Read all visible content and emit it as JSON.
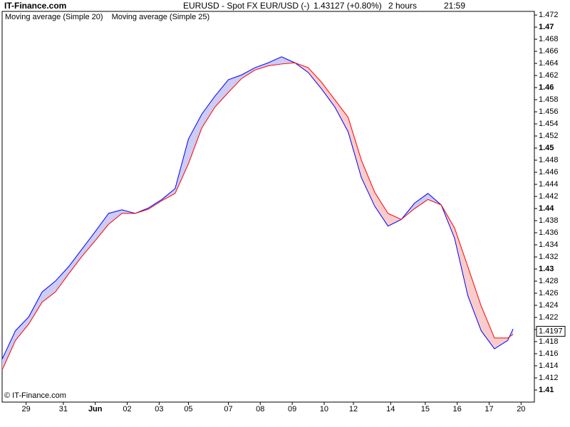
{
  "chart_data": {
    "type": "line",
    "site": "IT-Finance.com",
    "symbol": "EURUSD - Spot FX EUR/USD (-)",
    "quote": "1.43127 (+0.80%)",
    "interval": "2 hours",
    "time": "21:59",
    "footer": "© IT-Finance.com",
    "last_value": 1.4197,
    "x": [
      0,
      5,
      10,
      15,
      20,
      25,
      30,
      35,
      40,
      45,
      50,
      55,
      60,
      65,
      70,
      75,
      80,
      85,
      90,
      95,
      100,
      105,
      110,
      115,
      120,
      125,
      130,
      135,
      140,
      145,
      150,
      155,
      160,
      165,
      170,
      175,
      180,
      185,
      190,
      192
    ],
    "series": [
      {
        "name": "Moving average (Simple 20)",
        "color": "#0000cc",
        "values": [
          1.4151,
          1.4198,
          1.4221,
          1.4262,
          1.428,
          1.4304,
          1.4333,
          1.4362,
          1.4392,
          1.4398,
          1.4392,
          1.4401,
          1.4415,
          1.4433,
          1.4515,
          1.4556,
          1.4586,
          1.4613,
          1.4621,
          1.4633,
          1.4641,
          1.4651,
          1.4641,
          1.4625,
          1.4598,
          1.4568,
          1.4527,
          1.4451,
          1.4404,
          1.4371,
          1.4382,
          1.4409,
          1.4425,
          1.4406,
          1.4351,
          1.4256,
          1.4198,
          1.4168,
          1.4182,
          1.4201
        ]
      },
      {
        "name": "Moving average (Simple 25)",
        "color": "#3333aa",
        "values": [
          1.4133,
          1.4182,
          1.4209,
          1.4245,
          1.4262,
          1.4292,
          1.4321,
          1.4347,
          1.4374,
          1.4392,
          1.4392,
          1.4399,
          1.4413,
          1.4425,
          1.4474,
          1.4533,
          1.4568,
          1.4592,
          1.4615,
          1.4629,
          1.4636,
          1.4639,
          1.4641,
          1.4633,
          1.4609,
          1.458,
          1.4551,
          1.448,
          1.4427,
          1.4392,
          1.4382,
          1.44,
          1.4415,
          1.4406,
          1.4368,
          1.4304,
          1.4239,
          1.4186,
          1.4186,
          1.4192
        ]
      }
    ],
    "up_fill": "#ccccf4",
    "down_fill": "#f9cccc",
    "up_line": "#0000ff",
    "down_line": "#ff0000",
    "xlim": [
      0,
      200
    ],
    "xticks": [
      {
        "value": 9,
        "label": "29"
      },
      {
        "value": 23,
        "label": "31"
      },
      {
        "value": 35,
        "label": "Jun"
      },
      {
        "value": 47,
        "label": "02"
      },
      {
        "value": 59,
        "label": "03"
      },
      {
        "value": 70,
        "label": "05"
      },
      {
        "value": 85,
        "label": "07"
      },
      {
        "value": 97,
        "label": "08"
      },
      {
        "value": 109,
        "label": "09"
      },
      {
        "value": 121,
        "label": "10"
      },
      {
        "value": 132,
        "label": "12"
      },
      {
        "value": 146,
        "label": "14"
      },
      {
        "value": 159,
        "label": "15"
      },
      {
        "value": 171,
        "label": "16"
      },
      {
        "value": 183,
        "label": "17"
      },
      {
        "value": 195,
        "label": "20"
      }
    ],
    "ylim": [
      1.408,
      1.4726
    ],
    "yticks": [
      1.41,
      1.412,
      1.414,
      1.416,
      1.418,
      1.42,
      1.422,
      1.424,
      1.426,
      1.428,
      1.43,
      1.432,
      1.434,
      1.436,
      1.438,
      1.44,
      1.442,
      1.444,
      1.446,
      1.448,
      1.45,
      1.452,
      1.454,
      1.456,
      1.458,
      1.46,
      1.462,
      1.464,
      1.466,
      1.468,
      1.47,
      1.472
    ]
  }
}
